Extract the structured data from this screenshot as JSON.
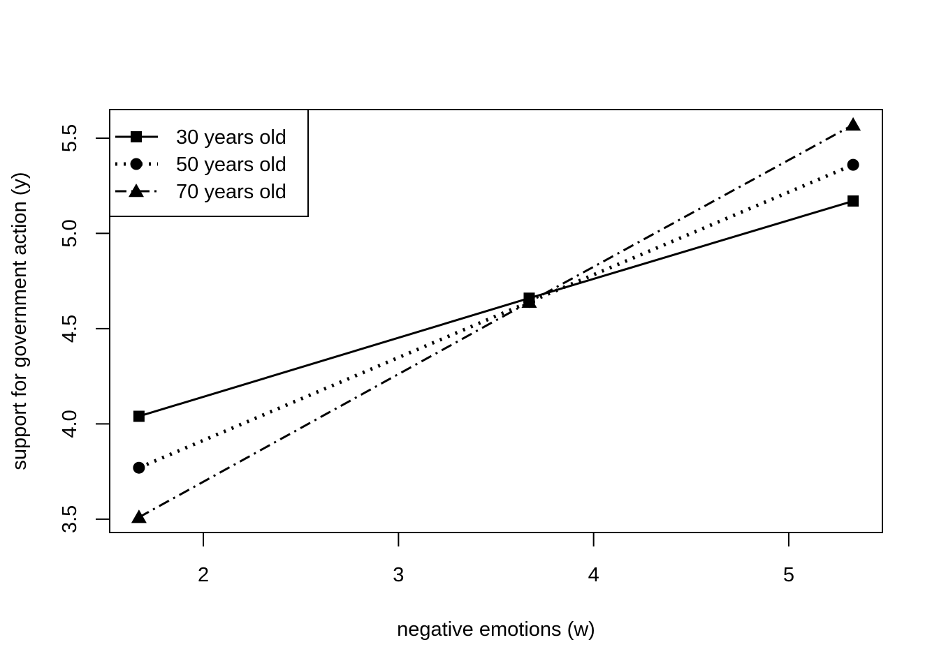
{
  "chart_data": {
    "type": "line",
    "title": "",
    "xlabel": "negative emotions (w)",
    "ylabel": "support for government action (y)",
    "xlim": [
      1.52,
      5.48
    ],
    "ylim": [
      3.43,
      5.65
    ],
    "x_ticks": [
      "2",
      "3",
      "4",
      "5"
    ],
    "y_ticks": [
      "3.5",
      "4.0",
      "4.5",
      "5.0",
      "5.5"
    ],
    "legend_position": "top-left",
    "grid": false,
    "series": [
      {
        "name": "30 years old",
        "marker": "square",
        "line_style": "solid",
        "x": [
          1.67,
          3.67,
          5.33
        ],
        "y": [
          4.04,
          4.66,
          5.17
        ]
      },
      {
        "name": "50 years old",
        "marker": "circle",
        "line_style": "dotted",
        "x": [
          1.67,
          3.67,
          5.33
        ],
        "y": [
          3.77,
          4.64,
          5.36
        ]
      },
      {
        "name": "70 years old",
        "marker": "triangle",
        "line_style": "dashdot",
        "x": [
          1.67,
          3.67,
          5.33
        ],
        "y": [
          3.51,
          4.64,
          5.57
        ]
      }
    ]
  }
}
